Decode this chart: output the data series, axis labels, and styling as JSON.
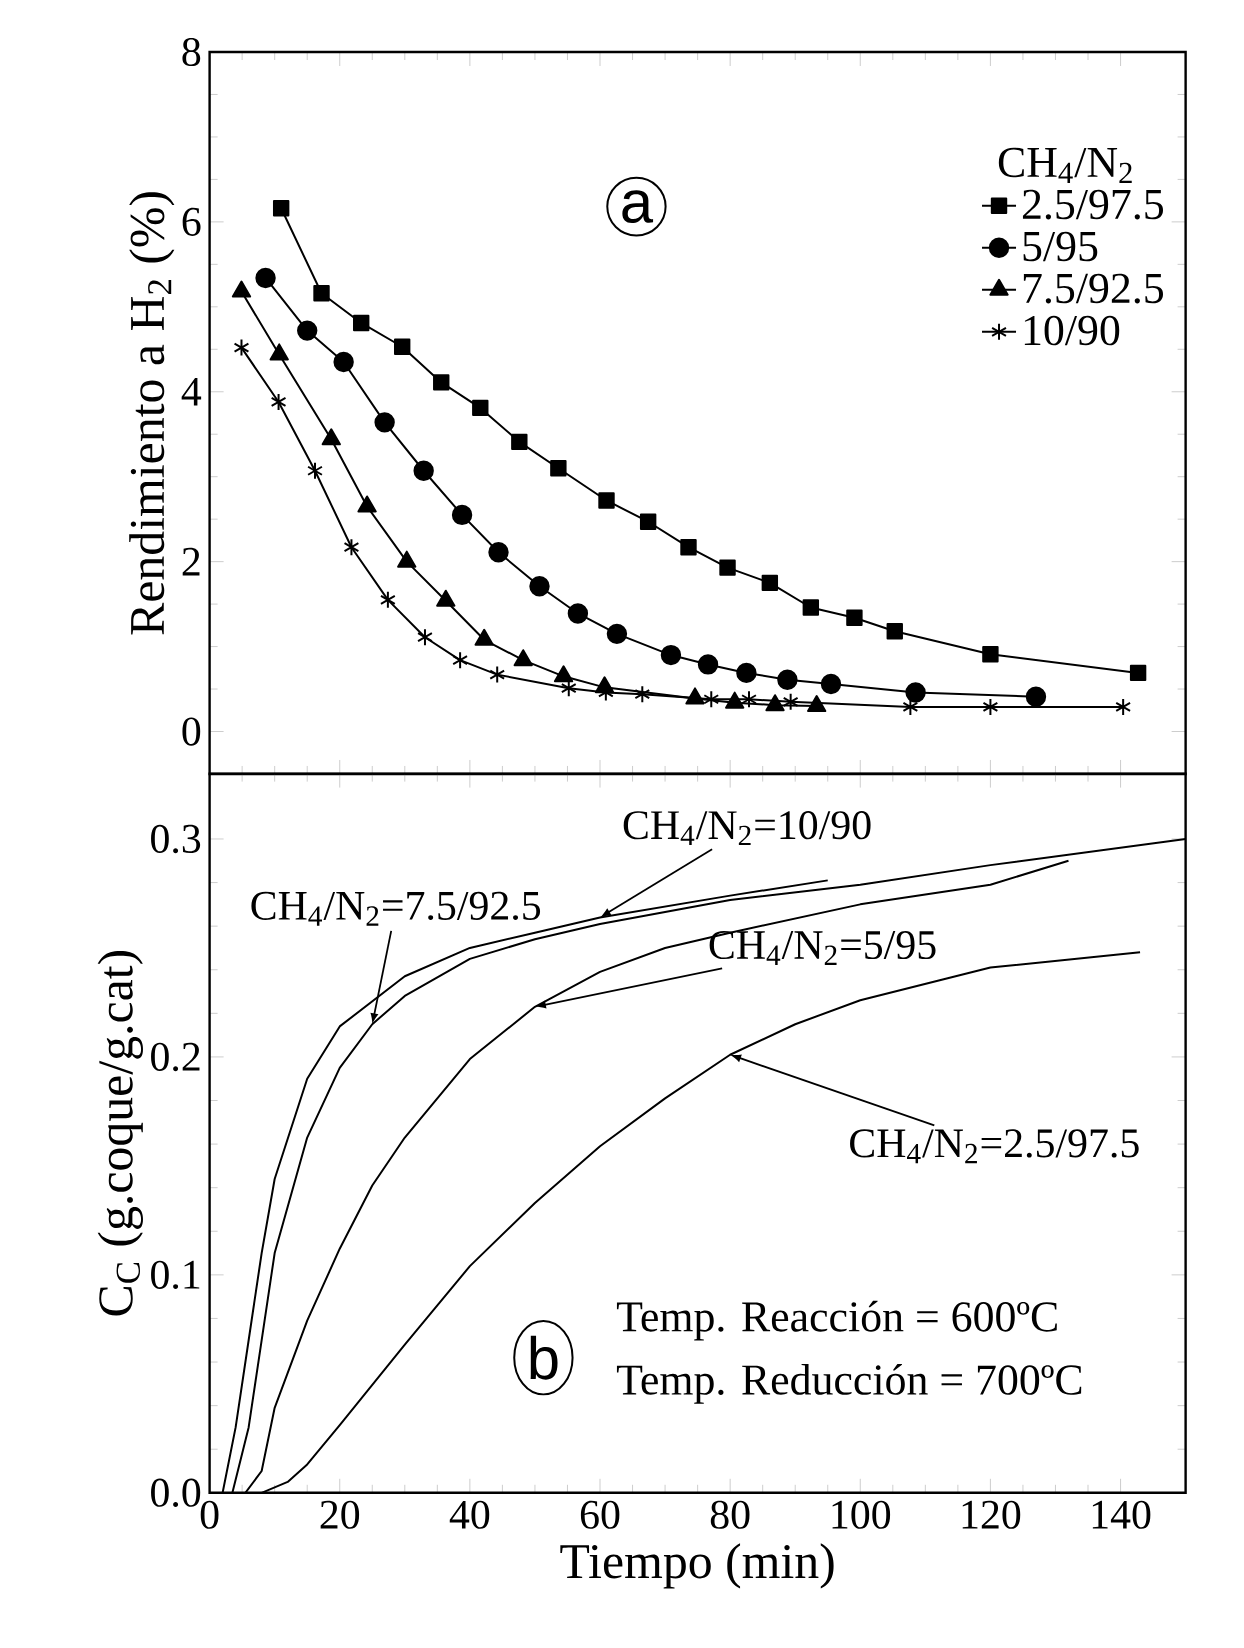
{
  "chart_data": [
    {
      "type": "line",
      "ylabel": "Rendimiento a H$_{2}$ (%)",
      "legend_title": "CH$_{4}$/N$_{2}$",
      "annotations": [
        "a"
      ],
      "xlim": [
        0,
        150
      ],
      "xticks": [
        0,
        20,
        40,
        60,
        80,
        100,
        120,
        140
      ],
      "ylim": [
        -0.5,
        8
      ],
      "yticks": [
        0,
        2,
        4,
        6,
        8
      ],
      "tick_labels": "y",
      "legend": "top right",
      "grid": false,
      "series": [
        {
          "name": "2.5/97.5",
          "color": "#000000",
          "marker": "square",
          "x": [
            11.0,
            17.2,
            23.3,
            29.6,
            35.6,
            41.6,
            47.6,
            53.6,
            61.0,
            67.4,
            73.6,
            79.6,
            86.1,
            92.4,
            99.1,
            105.3,
            120.0,
            142.7
          ],
          "values": [
            6.16,
            5.16,
            4.81,
            4.53,
            4.11,
            3.81,
            3.41,
            3.1,
            2.72,
            2.47,
            2.17,
            1.93,
            1.75,
            1.46,
            1.34,
            1.18,
            0.91,
            0.69
          ]
        },
        {
          "name": "5/95",
          "color": "#000000",
          "marker": "circle",
          "x": [
            8.6,
            15.0,
            20.6,
            26.9,
            32.9,
            38.8,
            44.4,
            50.7,
            56.6,
            62.6,
            70.9,
            76.6,
            82.5,
            88.8,
            95.5,
            108.5,
            127.0
          ],
          "values": [
            5.34,
            4.72,
            4.35,
            3.64,
            3.07,
            2.55,
            2.11,
            1.71,
            1.39,
            1.15,
            0.9,
            0.79,
            0.69,
            0.61,
            0.56,
            0.46,
            0.41
          ]
        },
        {
          "name": "7.5/92.5",
          "color": "#000000",
          "marker": "triangle",
          "x": [
            4.9,
            10.7,
            18.7,
            24.2,
            30.3,
            36.3,
            42.2,
            48.2,
            54.4,
            60.7,
            74.6,
            80.7,
            86.9,
            93.3
          ],
          "values": [
            5.18,
            4.44,
            3.44,
            2.65,
            2.0,
            1.54,
            1.08,
            0.84,
            0.65,
            0.52,
            0.39,
            0.34,
            0.31,
            0.3
          ]
        },
        {
          "name": "10/90",
          "color": "#000000",
          "marker": "cross",
          "x": [
            4.9,
            10.6,
            16.2,
            21.8,
            27.4,
            33.1,
            38.5,
            44.2,
            55.2,
            60.9,
            66.5,
            77.1,
            82.9,
            89.3,
            107.7,
            120.0,
            140.4
          ],
          "values": [
            4.52,
            3.88,
            3.07,
            2.17,
            1.55,
            1.11,
            0.84,
            0.67,
            0.51,
            0.46,
            0.44,
            0.38,
            0.38,
            0.35,
            0.29,
            0.29,
            0.29
          ]
        }
      ]
    },
    {
      "type": "line",
      "xlabel": "Tiempo (min)",
      "ylabel": "C$_{C}$ (g.coque/g.cat)",
      "annotations": [
        "b",
        "Temp. Reacción = 600ºC",
        "Temp. Reducción = 700ºC"
      ],
      "xlim": [
        0,
        150
      ],
      "xticks": [
        0,
        20,
        40,
        60,
        80,
        100,
        120,
        140
      ],
      "ylim": [
        0,
        0.33
      ],
      "yticks": [
        {
          "value": 0,
          "label": "0.0"
        },
        0.1,
        0.2,
        0.3
      ],
      "grid": false,
      "series": [
        {
          "name": "CH$_{4}$/N$_{2}$=10/90",
          "color": "#000000",
          "x": [
            2,
            4,
            6,
            8,
            10,
            15,
            20,
            30,
            40,
            50,
            60,
            80,
            95
          ],
          "values": [
            0,
            0.03,
            0.07,
            0.11,
            0.144,
            0.19,
            0.214,
            0.237,
            0.25,
            0.257,
            0.264,
            0.274,
            0.281
          ]
        },
        {
          "name": "CH$_{4}$/N$_{2}$=7.5/92.5",
          "color": "#000000",
          "x": [
            3.5,
            6,
            10,
            15,
            20,
            25,
            30,
            40,
            50,
            60,
            80,
            100,
            120,
            150
          ],
          "values": [
            0,
            0.03,
            0.11,
            0.163,
            0.195,
            0.215,
            0.228,
            0.245,
            0.254,
            0.261,
            0.272,
            0.279,
            0.288,
            0.3
          ]
        },
        {
          "name": "CH$_{4}$/N$_{2}$=5/95",
          "color": "#000000",
          "x": [
            5.5,
            8,
            10,
            15,
            20,
            25,
            30,
            40,
            50,
            60,
            70,
            80,
            100,
            120,
            132
          ],
          "values": [
            0,
            0.01,
            0.039,
            0.079,
            0.112,
            0.141,
            0.163,
            0.199,
            0.223,
            0.239,
            0.25,
            0.257,
            0.27,
            0.279,
            0.29
          ]
        },
        {
          "name": "CH$_{4}$/N$_{2}$=2.5/97.5",
          "color": "#000000",
          "x": [
            8,
            12,
            15,
            20,
            30,
            40,
            50,
            60,
            70,
            80,
            90,
            100,
            120,
            143
          ],
          "values": [
            0,
            0.005,
            0.013,
            0.031,
            0.068,
            0.104,
            0.133,
            0.159,
            0.181,
            0.201,
            0.215,
            0.226,
            0.241,
            0.248
          ]
        }
      ]
    }
  ]
}
